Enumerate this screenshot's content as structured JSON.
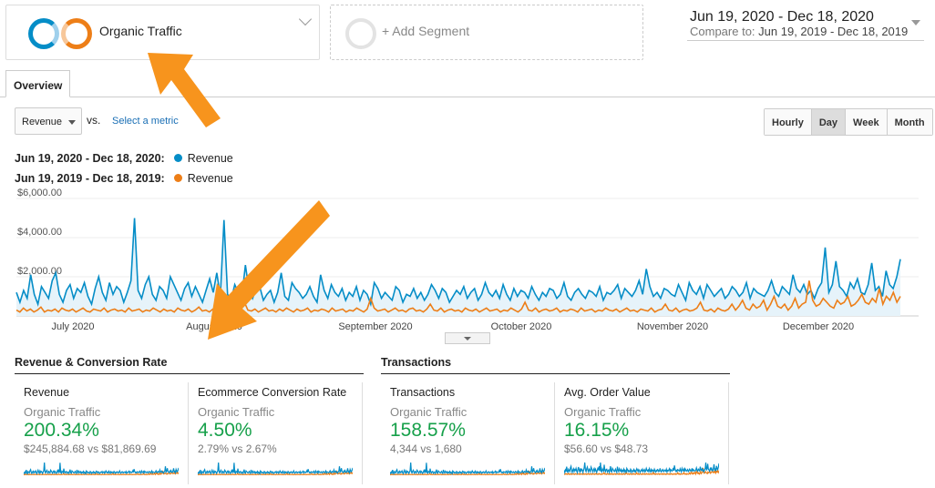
{
  "segments": {
    "primary_label": "Organic Traffic",
    "add_label": "+ Add Segment"
  },
  "date_range": {
    "main": "Jun 19, 2020 - Dec 18, 2020",
    "compare_prefix": "Compare to:",
    "compare_range": "Jun 19, 2019 - Dec 18, 2019"
  },
  "tabs": [
    {
      "label": "Overview"
    }
  ],
  "metric_selector": {
    "value": "Revenue",
    "vs_label": "vs.",
    "select_link": "Select a metric"
  },
  "granularity": {
    "options": [
      "Hourly",
      "Day",
      "Week",
      "Month"
    ],
    "active": "Day"
  },
  "legend": [
    {
      "range": "Jun 19, 2020 - Dec 18, 2020:",
      "metric": "Revenue",
      "color": "#058dc7"
    },
    {
      "range": "Jun 19, 2019 - Dec 18, 2019:",
      "metric": "Revenue",
      "color": "#ed7e17"
    }
  ],
  "chart_data": {
    "type": "line",
    "y_ticks": [
      "$6,000.00",
      "$4,000.00",
      "$2,000.00"
    ],
    "ylim": [
      0,
      6000
    ],
    "x_labels": [
      "July 2020",
      "August 2020",
      "September 2020",
      "October 2020",
      "November 2020",
      "December 2020"
    ],
    "series": [
      {
        "name": "Revenue",
        "color": "#058dc7",
        "values": [
          1200,
          700,
          1300,
          900,
          2100,
          1100,
          600,
          1500,
          1200,
          900,
          1800,
          2200,
          1100,
          700,
          1300,
          1600,
          900,
          1400,
          1200,
          1700,
          1000,
          600,
          1400,
          2000,
          1200,
          800,
          1700,
          1100,
          1500,
          1300,
          700,
          1200,
          1800,
          5000,
          1300,
          900,
          1600,
          2000,
          1100,
          800,
          1500,
          1300,
          900,
          2000,
          1600,
          1200,
          800,
          1400,
          1700,
          1000,
          1500,
          1100,
          700,
          1300,
          1900,
          1200,
          2200,
          1000,
          4900,
          1100,
          800,
          1600,
          1200,
          1000,
          2600,
          1300,
          900,
          1400,
          1500,
          800,
          1100,
          1300,
          700,
          1200,
          2200,
          1000,
          800,
          1700,
          1400,
          1200,
          900,
          1100,
          1500,
          1000,
          700,
          2100,
          1300,
          900,
          1600,
          1200,
          1000,
          1400,
          800,
          1200,
          1000,
          1500,
          800,
          1300,
          1100,
          600,
          1700,
          1400,
          900,
          1200,
          1000,
          800,
          1500,
          1300,
          700,
          1100,
          1000,
          1400,
          900,
          1200,
          800,
          1100,
          1600,
          1300,
          900,
          1400,
          1200,
          700,
          1000,
          1300,
          1100,
          1500,
          900,
          1200,
          1400,
          800,
          1100,
          1700,
          1200,
          1000,
          1300,
          900,
          1600,
          1100,
          800,
          1400,
          1000,
          1300,
          1200,
          900,
          1500,
          1100,
          800,
          1200,
          1000,
          1400,
          1300,
          900,
          1100,
          1700,
          1000,
          800,
          1200,
          1400,
          1100,
          900,
          1300,
          1200,
          1000,
          1500,
          800,
          1200,
          1100,
          1300,
          1600,
          900,
          1400,
          1200,
          1000,
          1300,
          1800,
          1100,
          2400,
          1500,
          1000,
          1200,
          900,
          1400,
          1300,
          1100,
          1000,
          1600,
          1200,
          800,
          1700,
          1300,
          1100,
          1500,
          900,
          1600,
          1300,
          1000,
          1200,
          1400,
          900,
          1100,
          1500,
          1300,
          1000,
          1200,
          1700,
          900,
          1400,
          1200,
          1100,
          1000,
          1300,
          1800,
          1200,
          1000,
          1500,
          1300,
          1100,
          2100,
          1400,
          1200,
          1600,
          1100,
          1300,
          900,
          1400,
          1700,
          3500,
          1200,
          1600,
          2800,
          1500,
          1300,
          1000,
          1700,
          1400,
          1900,
          1200,
          1100,
          1600,
          2700,
          1300,
          1500,
          1000,
          2300,
          1600,
          1400,
          2000,
          2900
        ]
      },
      {
        "name": "Revenue",
        "color": "#ed7e17",
        "values": [
          300,
          200,
          400,
          250,
          350,
          200,
          300,
          450,
          200,
          300,
          250,
          350,
          200,
          400,
          300,
          250,
          350,
          200,
          300,
          400,
          250,
          200,
          350,
          300,
          250,
          400,
          200,
          300,
          350,
          250,
          300,
          200,
          400,
          250,
          300,
          350,
          200,
          300,
          250,
          400,
          300,
          200,
          350,
          250,
          300,
          200,
          400,
          300,
          250,
          350,
          200,
          300,
          450,
          250,
          300,
          200,
          350,
          400,
          250,
          300,
          200,
          350,
          250,
          300,
          400,
          700,
          300,
          250,
          350,
          200,
          300,
          400,
          250,
          300,
          200,
          350,
          250,
          400,
          300,
          200,
          350,
          250,
          300,
          400,
          200,
          300,
          250,
          350,
          300,
          200,
          400,
          250,
          300,
          350,
          200,
          300,
          250,
          400,
          300,
          200,
          350,
          900,
          400,
          250,
          300,
          350,
          200,
          300,
          400,
          250,
          300,
          200,
          350,
          400,
          250,
          300,
          200,
          350,
          600,
          300,
          250,
          400,
          200,
          300,
          350,
          250,
          300,
          200,
          400,
          300,
          250,
          350,
          200,
          300,
          400,
          250,
          300,
          350,
          200,
          300,
          250,
          400,
          300,
          200,
          350,
          700,
          300,
          250,
          400,
          200,
          300,
          350,
          250,
          300,
          400,
          200,
          300,
          250,
          350,
          300,
          200,
          400,
          250,
          300,
          350,
          200,
          300,
          250,
          400,
          300,
          250,
          350,
          200,
          300,
          400,
          250,
          300,
          200,
          350,
          300,
          250,
          400,
          200,
          300,
          350,
          600,
          300,
          250,
          400,
          200,
          300,
          350,
          250,
          300,
          400,
          700,
          300,
          250,
          350,
          200,
          400,
          300,
          250,
          350,
          600,
          300,
          500,
          800,
          400,
          300,
          600,
          400,
          500,
          800,
          300,
          600,
          1000,
          500,
          400,
          600,
          300,
          500,
          900,
          400,
          600,
          700,
          1800,
          800,
          500,
          600,
          900,
          700,
          500,
          400,
          800,
          600,
          700,
          1000,
          500,
          600,
          800,
          1100,
          700,
          600,
          900,
          700,
          1400,
          600,
          1000,
          800,
          1200,
          700,
          1000
        ]
      }
    ]
  },
  "sections": [
    {
      "title": "Revenue & Conversion Rate"
    },
    {
      "title": "Transactions"
    }
  ],
  "cards": [
    {
      "title": "Revenue",
      "segment": "Organic Traffic",
      "percent": "200.34%",
      "compare": "$245,884.68 vs $81,869.69"
    },
    {
      "title": "Ecommerce Conversion Rate",
      "segment": "Organic Traffic",
      "percent": "4.50%",
      "compare": "2.79% vs 2.67%"
    },
    {
      "title": "Transactions",
      "segment": "Organic Traffic",
      "percent": "158.57%",
      "compare": "4,344 vs 1,680"
    },
    {
      "title": "Avg. Order Value",
      "segment": "Organic Traffic",
      "percent": "16.15%",
      "compare": "$56.60 vs $48.73"
    }
  ],
  "colors": {
    "current": "#058dc7",
    "previous": "#ed7e17",
    "positive": "#16a04a",
    "arrow": "#f7941d"
  }
}
